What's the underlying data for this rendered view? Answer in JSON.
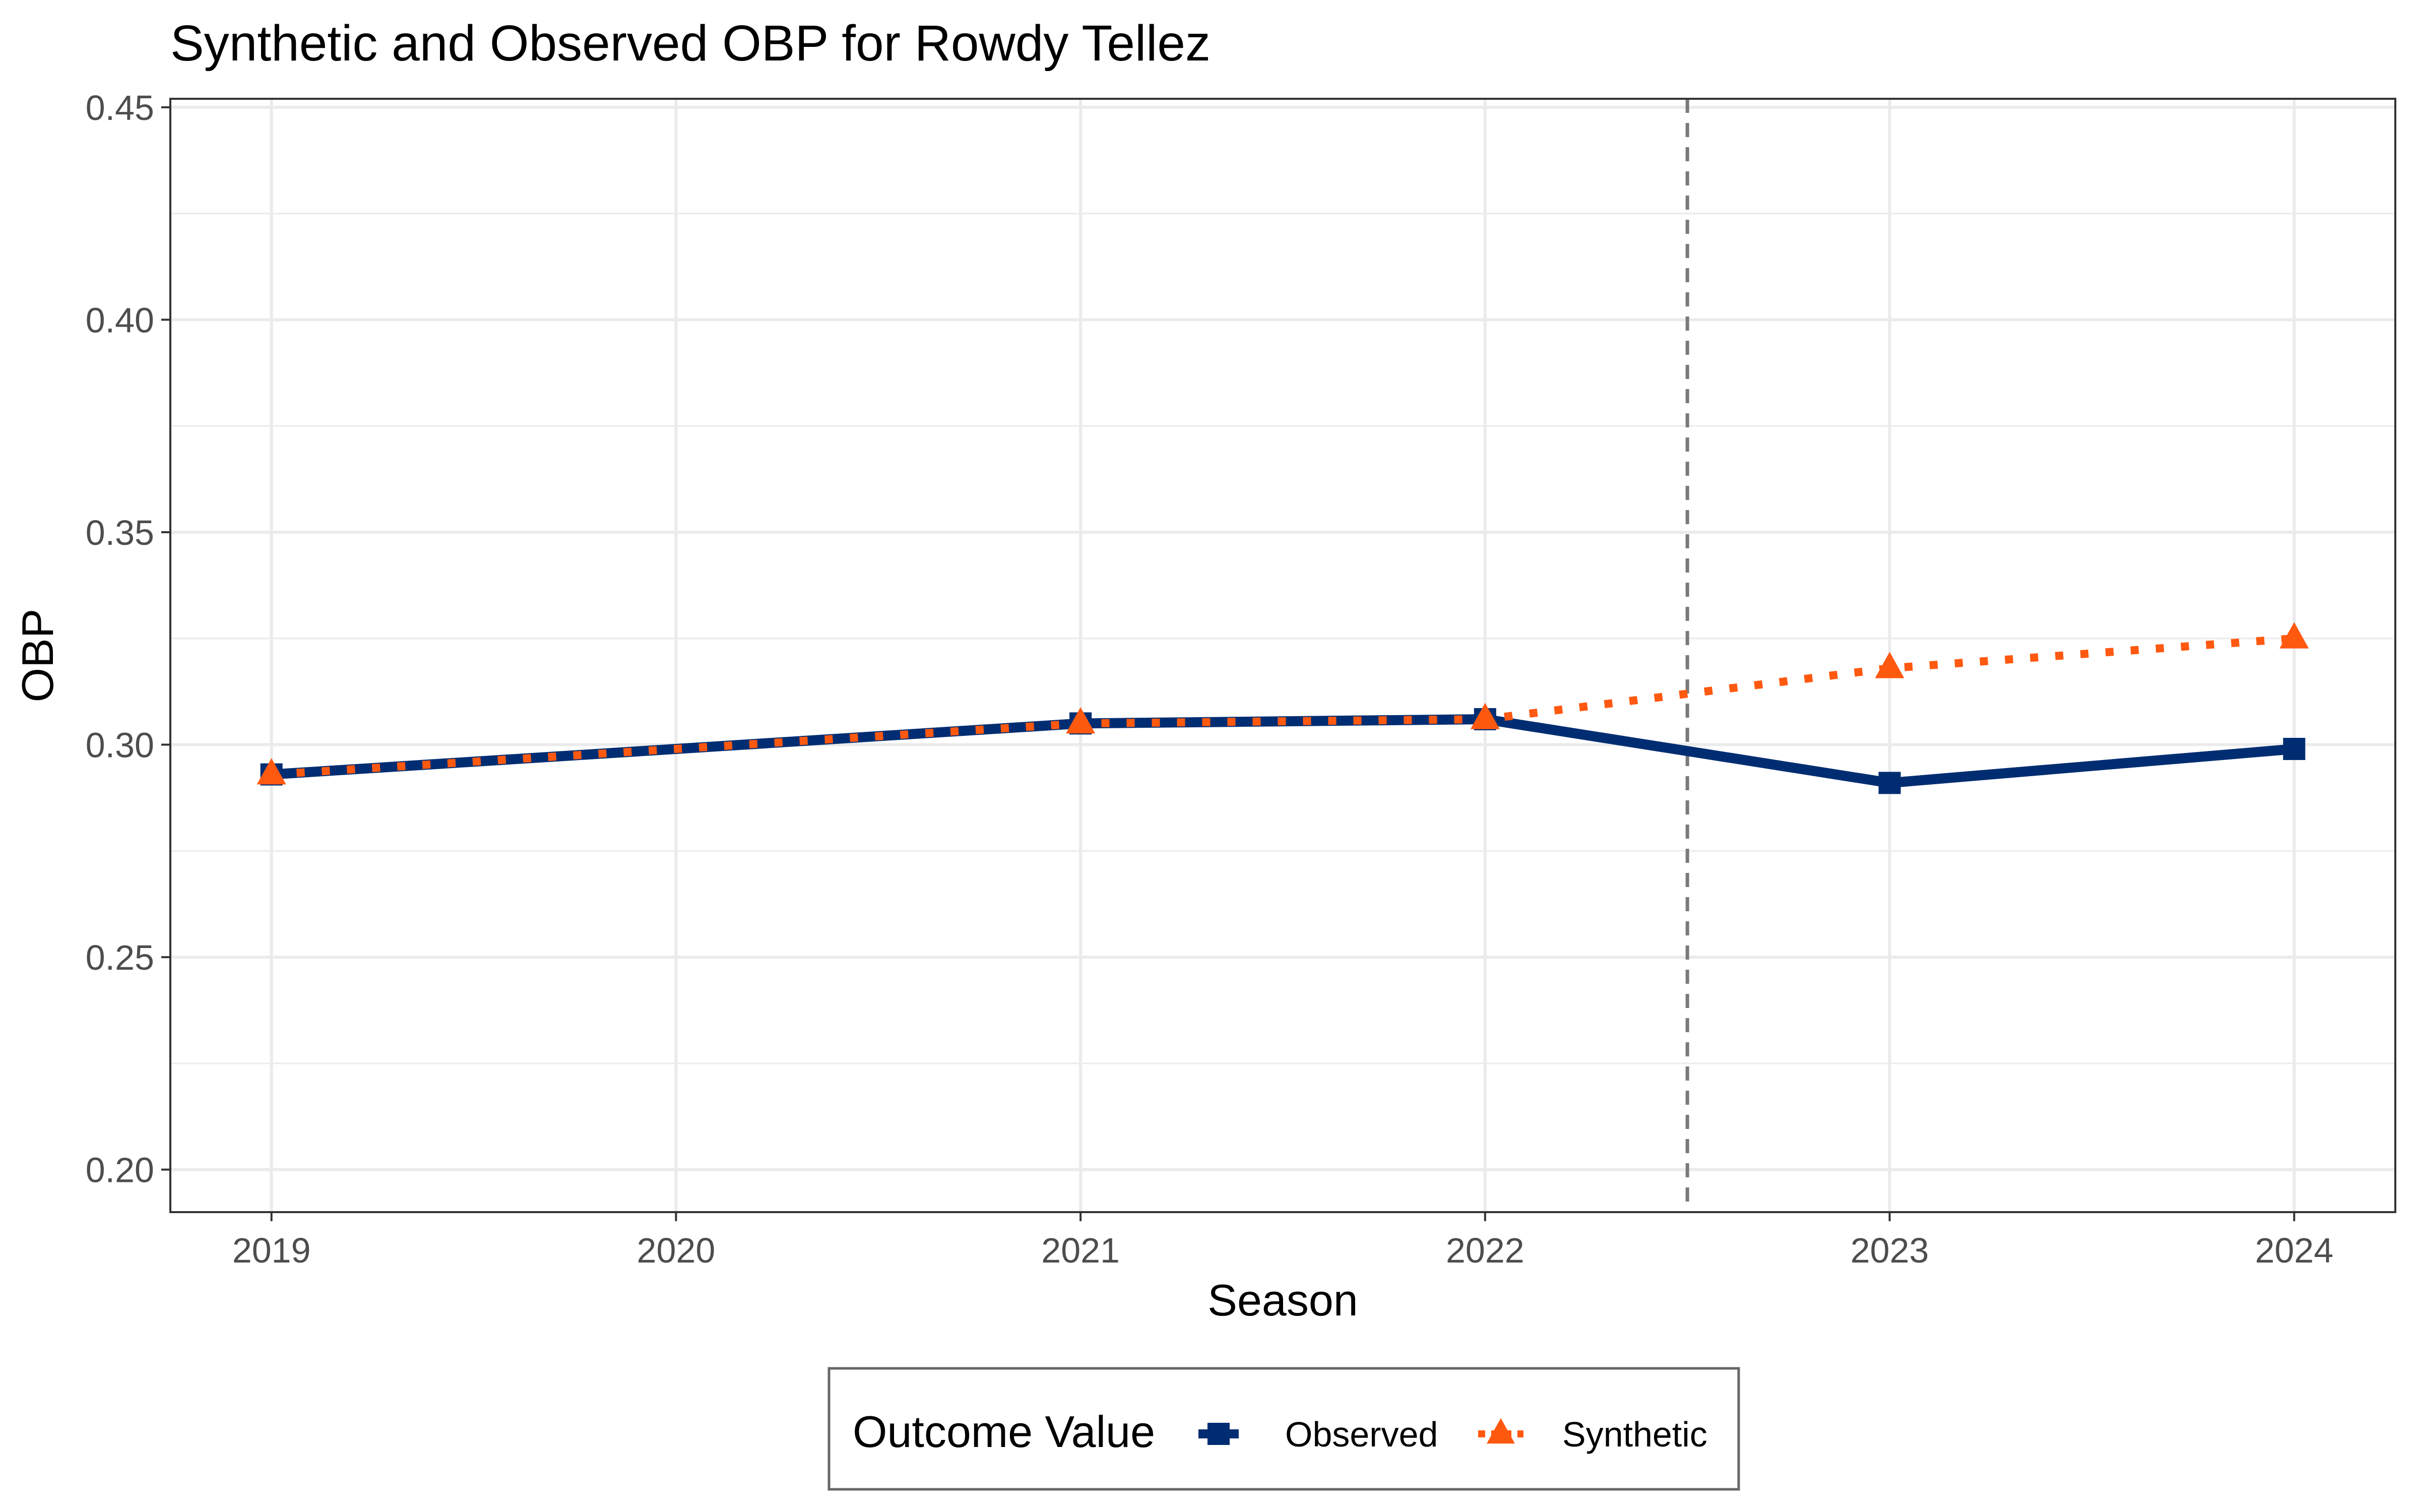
{
  "chart_data": {
    "type": "line",
    "title": "Synthetic and Observed OBP for Rowdy Tellez",
    "xlabel": "Season",
    "ylabel": "OBP",
    "x": [
      2019,
      2020,
      2021,
      2022,
      2023,
      2024
    ],
    "x_tick_labels": [
      "2019",
      "2020",
      "2021",
      "2022",
      "2023",
      "2024"
    ],
    "y_tick_labels": [
      "0.20",
      "0.25",
      "0.30",
      "0.35",
      "0.40",
      "0.45"
    ],
    "y_ticks": [
      0.2,
      0.25,
      0.3,
      0.35,
      0.4,
      0.45
    ],
    "xlim": [
      2018.75,
      2024.25
    ],
    "ylim": [
      0.19,
      0.452
    ],
    "intervention_x": 2022.5,
    "grid": true,
    "legend": {
      "title": "Outcome Value",
      "position": "bottom"
    },
    "series": [
      {
        "name": "Observed",
        "color": "#002D72",
        "marker": "square",
        "line_style": "solid",
        "points": [
          {
            "x": 2019,
            "y": 0.293
          },
          {
            "x": 2021,
            "y": 0.305
          },
          {
            "x": 2022,
            "y": 0.306
          },
          {
            "x": 2023,
            "y": 0.291
          },
          {
            "x": 2024,
            "y": 0.299
          }
        ]
      },
      {
        "name": "Synthetic",
        "color": "#FF5910",
        "marker": "triangle",
        "line_style": "dotted",
        "points": [
          {
            "x": 2019,
            "y": 0.293
          },
          {
            "x": 2021,
            "y": 0.305
          },
          {
            "x": 2022,
            "y": 0.306
          },
          {
            "x": 2023,
            "y": 0.318
          },
          {
            "x": 2024,
            "y": 0.325
          }
        ]
      }
    ]
  }
}
